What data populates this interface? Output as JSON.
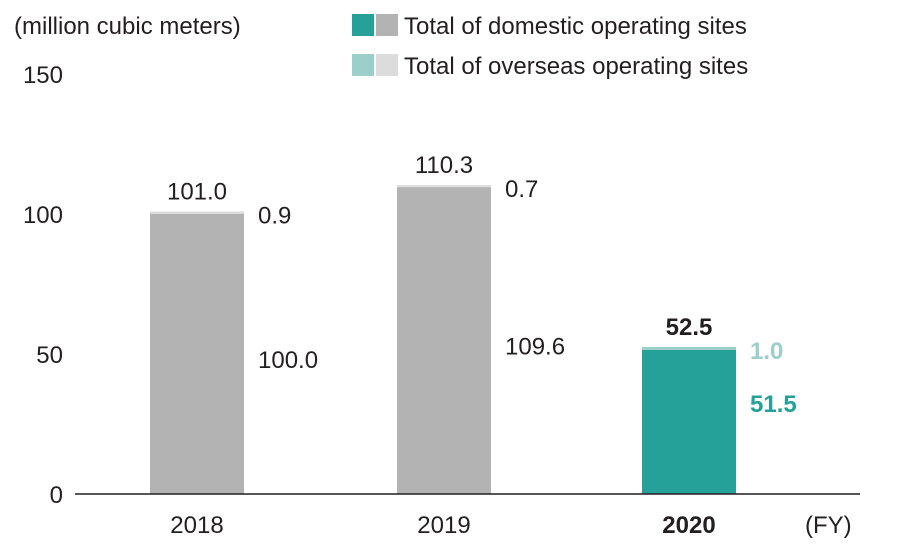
{
  "chart_data": {
    "type": "bar",
    "stacked": true,
    "unit_label": "(million cubic meters)",
    "x_unit": "(FY)",
    "categories": [
      "2018",
      "2019",
      "2020"
    ],
    "highlight_category": "2020",
    "yticks": [
      "0",
      "50",
      "100",
      "150"
    ],
    "ylim": [
      0,
      150
    ],
    "grid": false,
    "legend_position": "top-right",
    "legend": [
      {
        "label": "Total of domestic operating sites",
        "swatches": [
          "#26a199",
          "#b3b3b3"
        ]
      },
      {
        "label": "Total of overseas operating sites",
        "swatches": [
          "#9ccfca",
          "#dcdcdc"
        ]
      }
    ],
    "series": [
      {
        "name": "Total of domestic operating sites",
        "values": [
          100.0,
          109.6,
          51.5
        ],
        "labels": [
          "100.0",
          "109.6",
          "51.5"
        ],
        "colors": [
          "#b3b3b3",
          "#b3b3b3",
          "#26a199"
        ]
      },
      {
        "name": "Total of overseas operating sites",
        "values": [
          0.9,
          0.7,
          1.0
        ],
        "labels": [
          "0.9",
          "0.7",
          "1.0"
        ],
        "colors": [
          "#dcdcdc",
          "#dcdcdc",
          "#9ccfca"
        ]
      }
    ],
    "totals": [
      "101.0",
      "110.3",
      "52.5"
    ]
  }
}
